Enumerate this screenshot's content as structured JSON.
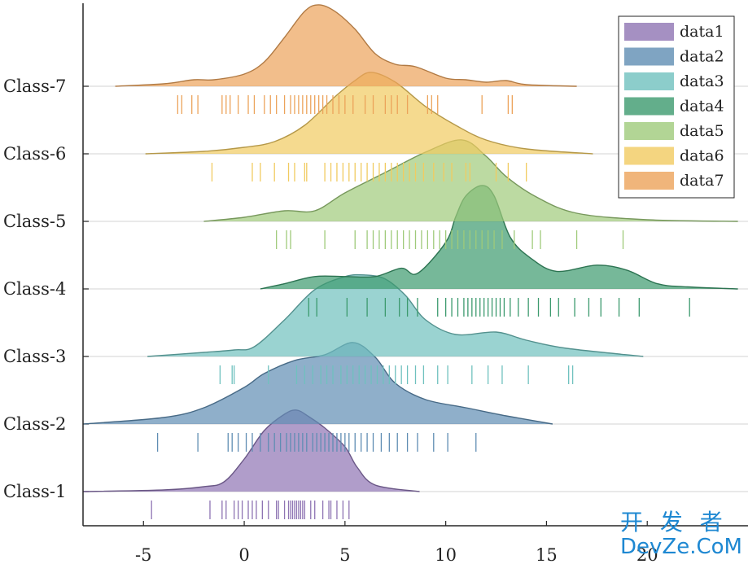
{
  "chart_data": {
    "type": "area",
    "subtype": "ridgeline",
    "title": "",
    "xlabel": "",
    "ylabel": "",
    "xlim": [
      -8,
      25
    ],
    "x_ticks": [
      -5,
      0,
      5,
      10,
      15,
      20
    ],
    "categories": [
      "Class-1",
      "Class-2",
      "Class-3",
      "Class-4",
      "Class-5",
      "Class-6",
      "Class-7"
    ],
    "legend": {
      "position": "top-right"
    },
    "grid": "horizontal baselines only",
    "series": [
      {
        "name": "data1",
        "category": "Class-1",
        "color": "#8e74b3",
        "peak_height": 1.3,
        "density": [
          [
            -8,
            0
          ],
          [
            -4,
            0.02
          ],
          [
            -2,
            0.06
          ],
          [
            -1,
            0.12
          ],
          [
            0,
            0.4
          ],
          [
            1,
            0.75
          ],
          [
            2,
            0.95
          ],
          [
            2.6,
            1.0
          ],
          [
            3.2,
            0.92
          ],
          [
            4,
            0.78
          ],
          [
            5,
            0.55
          ],
          [
            5.6,
            0.3
          ],
          [
            6.5,
            0.08
          ],
          [
            8.7,
            0
          ]
        ],
        "rug": [
          -4.6,
          -1.7,
          -1.1,
          -0.9,
          -0.5,
          -0.3,
          -0.1,
          0.2,
          0.4,
          0.6,
          0.9,
          1.2,
          1.6,
          1.7,
          2.0,
          2.2,
          2.3,
          2.4,
          2.5,
          2.6,
          2.7,
          2.8,
          2.9,
          3.0,
          3.3,
          3.5,
          3.9,
          4.2,
          4.3,
          4.6,
          4.9,
          5.2
        ]
      },
      {
        "name": "data2",
        "category": "Class-2",
        "color": "#5f8db3",
        "peak_height": 1.3,
        "density": [
          [
            -8,
            0
          ],
          [
            -4,
            0.08
          ],
          [
            -2,
            0.2
          ],
          [
            0,
            0.45
          ],
          [
            1,
            0.62
          ],
          [
            2.5,
            0.78
          ],
          [
            4,
            0.85
          ],
          [
            5.4,
            1.0
          ],
          [
            6.5,
            0.82
          ],
          [
            7.5,
            0.5
          ],
          [
            9,
            0.3
          ],
          [
            11,
            0.2
          ],
          [
            13,
            0.1
          ],
          [
            15.3,
            0
          ]
        ],
        "rug": [
          -4.3,
          -2.3,
          -0.8,
          -0.6,
          -0.3,
          0.1,
          0.4,
          0.8,
          1.2,
          1.5,
          1.8,
          2.1,
          2.3,
          2.5,
          2.7,
          2.9,
          3.1,
          3.4,
          3.6,
          3.8,
          4.0,
          4.2,
          4.4,
          4.6,
          4.8,
          5.0,
          5.2,
          5.5,
          5.8,
          6.1,
          6.4,
          6.8,
          7.2,
          7.6,
          8.1,
          8.6,
          9.4,
          10.1,
          11.5
        ]
      },
      {
        "name": "data3",
        "category": "Class-3",
        "color": "#6fc1be",
        "peak_height": 1.3,
        "density": [
          [
            -4.8,
            0
          ],
          [
            -2,
            0.05
          ],
          [
            -0.5,
            0.08
          ],
          [
            0.5,
            0.12
          ],
          [
            2,
            0.45
          ],
          [
            3.5,
            0.82
          ],
          [
            5,
            0.98
          ],
          [
            6,
            1.0
          ],
          [
            7,
            0.95
          ],
          [
            8,
            0.75
          ],
          [
            9,
            0.45
          ],
          [
            10.5,
            0.27
          ],
          [
            12.5,
            0.3
          ],
          [
            14,
            0.2
          ],
          [
            16,
            0.1
          ],
          [
            19.8,
            0
          ]
        ],
        "rug": [
          -1.2,
          -0.6,
          -0.5,
          1.2,
          2.6,
          3.0,
          3.4,
          3.8,
          4.1,
          4.4,
          4.8,
          5.1,
          5.4,
          5.7,
          6.0,
          6.3,
          6.6,
          6.9,
          7.2,
          7.5,
          7.8,
          8.1,
          8.5,
          8.9,
          9.6,
          10.1,
          11.3,
          12.1,
          12.8,
          14.1,
          16.1,
          16.3
        ]
      },
      {
        "name": "data4",
        "category": "Class-4",
        "color": "#3c9a6e",
        "peak_height": 1.65,
        "density": [
          [
            0.8,
            0
          ],
          [
            2,
            0.05
          ],
          [
            3.5,
            0.12
          ],
          [
            5,
            0.12
          ],
          [
            6.5,
            0.12
          ],
          [
            7.8,
            0.2
          ],
          [
            8.6,
            0.15
          ],
          [
            10,
            0.45
          ],
          [
            10.5,
            0.7
          ],
          [
            11,
            0.9
          ],
          [
            11.8,
            1.0
          ],
          [
            12.4,
            0.9
          ],
          [
            13.2,
            0.5
          ],
          [
            14.2,
            0.3
          ],
          [
            15.5,
            0.17
          ],
          [
            17.5,
            0.23
          ],
          [
            19,
            0.18
          ],
          [
            20.5,
            0.05
          ],
          [
            22,
            0.02
          ],
          [
            24.5,
            0
          ]
        ],
        "rug": [
          3.2,
          3.6,
          5.1,
          6.1,
          7.0,
          7.7,
          8.1,
          8.6,
          9.6,
          10.0,
          10.3,
          10.6,
          10.9,
          11.1,
          11.3,
          11.5,
          11.7,
          11.9,
          12.1,
          12.3,
          12.5,
          12.7,
          12.9,
          13.2,
          13.6,
          14.1,
          14.6,
          15.2,
          15.6,
          16.4,
          17.1,
          17.7,
          18.6,
          19.6,
          22.1
        ]
      },
      {
        "name": "data5",
        "category": "Class-5",
        "color": "#9fca7a",
        "peak_height": 1.3,
        "density": [
          [
            -2,
            0
          ],
          [
            0,
            0.05
          ],
          [
            2,
            0.13
          ],
          [
            3.5,
            0.13
          ],
          [
            5,
            0.35
          ],
          [
            7,
            0.6
          ],
          [
            9,
            0.85
          ],
          [
            10.8,
            1.0
          ],
          [
            12,
            0.8
          ],
          [
            13,
            0.55
          ],
          [
            14.5,
            0.3
          ],
          [
            16.5,
            0.1
          ],
          [
            20,
            0.02
          ],
          [
            24.5,
            0
          ]
        ],
        "rug": [
          1.6,
          2.1,
          2.3,
          4.0,
          5.5,
          6.1,
          6.4,
          6.7,
          7.0,
          7.3,
          7.6,
          7.9,
          8.2,
          8.5,
          8.8,
          9.1,
          9.4,
          9.7,
          10.0,
          10.3,
          10.6,
          10.9,
          11.2,
          11.5,
          11.8,
          12.1,
          12.4,
          12.8,
          13.4,
          14.3,
          14.7,
          16.5,
          18.8
        ]
      },
      {
        "name": "data6",
        "category": "Class-6",
        "color": "#f1cb60",
        "peak_height": 1.3,
        "density": [
          [
            -4.9,
            0
          ],
          [
            -2,
            0.03
          ],
          [
            0,
            0.08
          ],
          [
            1.5,
            0.15
          ],
          [
            3,
            0.35
          ],
          [
            4.5,
            0.7
          ],
          [
            5.5,
            0.9
          ],
          [
            6.3,
            1.0
          ],
          [
            7.5,
            0.88
          ],
          [
            9,
            0.58
          ],
          [
            10.5,
            0.35
          ],
          [
            12,
            0.17
          ],
          [
            14,
            0.06
          ],
          [
            17.3,
            0
          ]
        ],
        "rug": [
          -1.6,
          0.4,
          0.8,
          1.5,
          2.2,
          2.5,
          3.0,
          3.1,
          4.0,
          4.3,
          4.6,
          4.9,
          5.2,
          5.5,
          5.8,
          6.1,
          6.4,
          6.7,
          7.0,
          7.3,
          7.6,
          7.9,
          8.2,
          8.5,
          8.9,
          9.4,
          9.9,
          10.3,
          11.0,
          11.2,
          12.5,
          13.1,
          14.0
        ]
      },
      {
        "name": "data7",
        "category": "Class-7",
        "color": "#eca35a",
        "peak_height": 1.3,
        "density": [
          [
            -6.4,
            0
          ],
          [
            -4,
            0.03
          ],
          [
            -2.5,
            0.08
          ],
          [
            -1.5,
            0.08
          ],
          [
            0,
            0.15
          ],
          [
            1,
            0.3
          ],
          [
            2,
            0.6
          ],
          [
            3,
            0.92
          ],
          [
            3.7,
            1.0
          ],
          [
            4.5,
            0.92
          ],
          [
            5.5,
            0.7
          ],
          [
            6.5,
            0.4
          ],
          [
            7.5,
            0.27
          ],
          [
            8.5,
            0.24
          ],
          [
            10,
            0.1
          ],
          [
            11,
            0.08
          ],
          [
            12,
            0.05
          ],
          [
            13,
            0.07
          ],
          [
            14,
            0.02
          ],
          [
            16.5,
            0
          ]
        ],
        "rug": [
          -3.3,
          -3.1,
          -2.6,
          -2.3,
          -1.1,
          -0.9,
          -0.7,
          -0.3,
          0.2,
          0.5,
          1.0,
          1.3,
          1.6,
          2.0,
          2.3,
          2.5,
          2.7,
          2.9,
          3.1,
          3.3,
          3.5,
          3.7,
          3.9,
          4.1,
          4.4,
          4.7,
          5.0,
          5.4,
          6.0,
          6.4,
          7.0,
          7.3,
          7.6,
          8.1,
          9.1,
          9.3,
          9.6,
          11.8,
          13.1,
          13.3
        ]
      }
    ]
  },
  "watermark": {
    "top": "开 发 者",
    "bottom": "DevZe.CoM"
  }
}
